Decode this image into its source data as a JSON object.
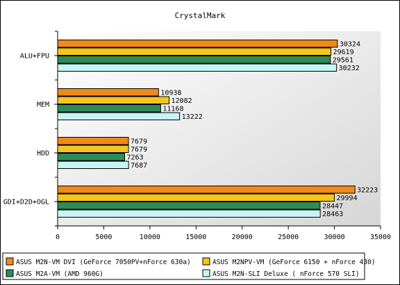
{
  "chart_data": {
    "type": "bar",
    "orientation": "horizontal",
    "title": "CrystalMark",
    "xlabel": "",
    "ylabel": "",
    "categories": [
      "ALU+FPU",
      "MEM",
      "HDD",
      "GDI+D2D+OGL"
    ],
    "series": [
      {
        "name": "ASUS M2N-VM DVI (GeForce 7050PV+nForce 630a)",
        "color": "#ef8a1c",
        "values": [
          30324,
          10938,
          7679,
          32223
        ]
      },
      {
        "name": "ASUS M2NPV-VM (GeForce 6150 + nForce 430)",
        "color": "#f2c61f",
        "values": [
          29619,
          12082,
          7679,
          29994
        ]
      },
      {
        "name": "ASUS M2A-VM (AMD 960G)",
        "color": "#2e8b57",
        "values": [
          29561,
          11168,
          7263,
          28447
        ]
      },
      {
        "name": "ASUS M2N-SLI Deluxe ( nForce 570 SLI)",
        "color": "#c8f4f4",
        "values": [
          30232,
          13222,
          7687,
          28463
        ]
      }
    ],
    "xlim": [
      0,
      35000
    ],
    "xticks": [
      0,
      5000,
      10000,
      15000,
      20000,
      25000,
      30000,
      35000
    ],
    "grid": false,
    "legend_position": "bottom",
    "plot_background": "gradient gray"
  }
}
